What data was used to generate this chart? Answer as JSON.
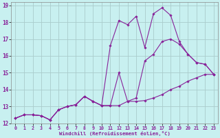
{
  "background_color": "#c8f0f0",
  "grid_color": "#aacccc",
  "line_color": "#882299",
  "xlim": [
    -0.5,
    23.5
  ],
  "ylim": [
    12,
    19.2
  ],
  "yticks": [
    12,
    13,
    14,
    15,
    16,
    17,
    18,
    19
  ],
  "xticks": [
    0,
    1,
    2,
    3,
    4,
    5,
    6,
    7,
    8,
    9,
    10,
    11,
    12,
    13,
    14,
    15,
    16,
    17,
    18,
    19,
    20,
    21,
    22,
    23
  ],
  "xlabel": "Windchill (Refroidissement éolien,°C)",
  "lines": [
    {
      "x": [
        0,
        1,
        2,
        3,
        4,
        5,
        6,
        7,
        8,
        9,
        10,
        11,
        12,
        13,
        14,
        15,
        16,
        17,
        18,
        19,
        20,
        21,
        22,
        23
      ],
      "y": [
        12.3,
        12.5,
        12.5,
        12.45,
        12.2,
        12.8,
        13.0,
        13.1,
        13.6,
        13.3,
        13.05,
        13.05,
        13.05,
        13.3,
        13.3,
        13.35,
        13.5,
        13.7,
        14.0,
        14.2,
        14.5,
        14.7,
        14.9,
        14.9
      ]
    },
    {
      "x": [
        0,
        1,
        2,
        3,
        4,
        5,
        6,
        7,
        8,
        9,
        10,
        11,
        12,
        13,
        14,
        15,
        16,
        17,
        18,
        19,
        20,
        21,
        22,
        23
      ],
      "y": [
        12.3,
        12.5,
        12.5,
        12.45,
        12.2,
        12.8,
        13.0,
        13.1,
        13.6,
        13.3,
        13.05,
        13.05,
        15.0,
        13.3,
        13.5,
        15.7,
        16.1,
        16.85,
        17.0,
        16.7,
        16.1,
        15.6,
        15.5,
        14.9
      ]
    },
    {
      "x": [
        0,
        1,
        2,
        3,
        4,
        5,
        6,
        7,
        8,
        9,
        10,
        11,
        12,
        13,
        14,
        15,
        16,
        17,
        18,
        19,
        20,
        21,
        22,
        23
      ],
      "y": [
        12.3,
        12.5,
        12.5,
        12.45,
        12.2,
        12.8,
        13.0,
        13.1,
        13.6,
        13.3,
        13.05,
        16.6,
        18.1,
        17.85,
        18.35,
        16.5,
        18.5,
        18.85,
        18.4,
        16.85,
        16.1,
        15.6,
        15.5,
        14.9
      ]
    }
  ]
}
